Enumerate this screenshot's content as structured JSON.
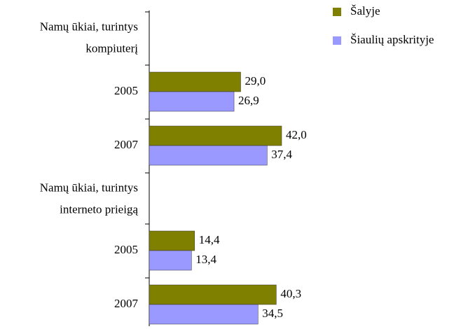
{
  "chart_data": {
    "type": "bar",
    "orientation": "horizontal",
    "categories": [
      [
        "Namų ūkiai, turintys",
        "kompiuterį"
      ],
      "2005",
      "2007",
      [
        "Namų ūkiai, turintys",
        "interneto prieigą"
      ],
      "2005",
      "2007"
    ],
    "series": [
      {
        "name": "Šalyje",
        "color": "#808000",
        "values": [
          null,
          29.0,
          42.0,
          null,
          14.4,
          40.3
        ],
        "value_labels": [
          null,
          "29,0",
          "42,0",
          null,
          "14,4",
          "40,3"
        ]
      },
      {
        "name": "Šiaulių apskrityje",
        "color": "#9999ff",
        "values": [
          null,
          26.9,
          37.4,
          null,
          13.4,
          34.5
        ],
        "value_labels": [
          null,
          "26,9",
          "37,4",
          null,
          "13,4",
          "34,5"
        ]
      }
    ],
    "legend": "top-right"
  }
}
